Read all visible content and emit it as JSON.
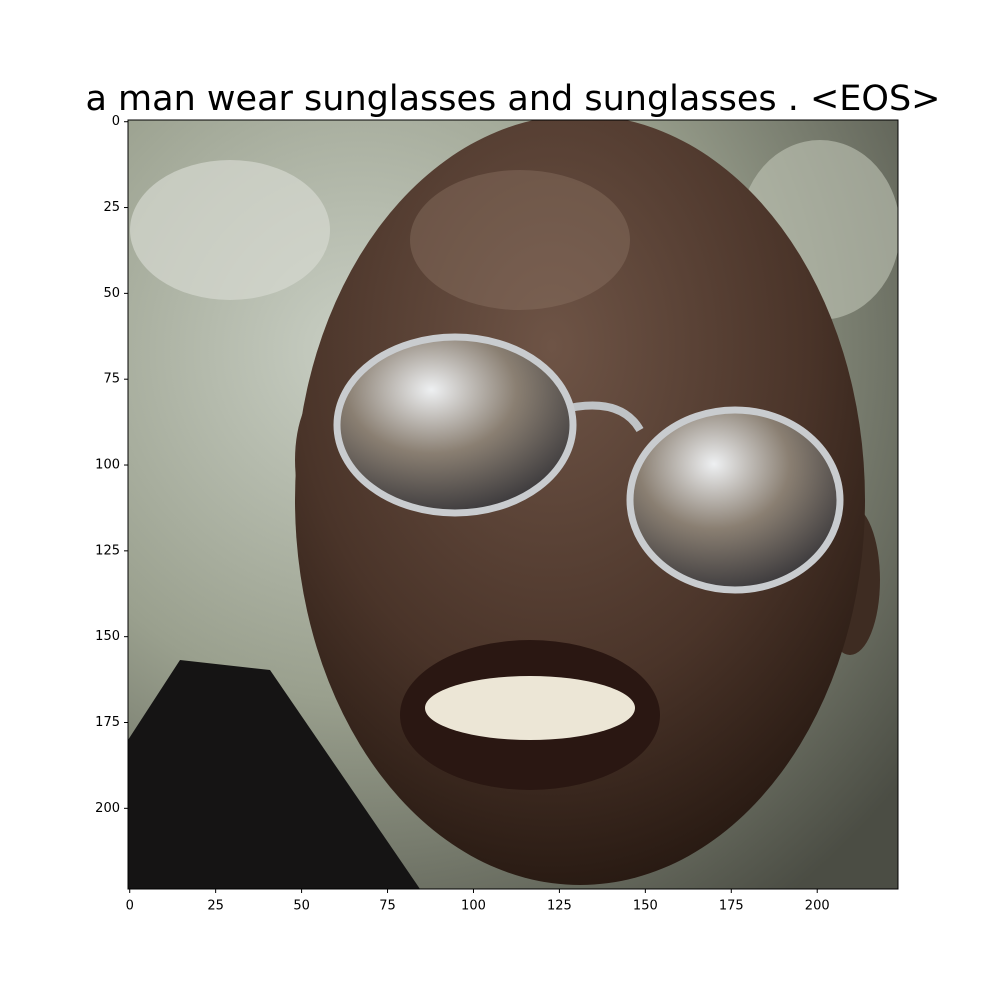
{
  "chart_data": {
    "type": "image",
    "title": "a man wear sunglasses and sunglasses . <EOS>",
    "xlim": [
      -0.5,
      223.5
    ],
    "ylim": [
      223.5,
      -0.5
    ],
    "xticks": [
      0,
      25,
      50,
      75,
      100,
      125,
      150,
      175,
      200
    ],
    "yticks": [
      0,
      25,
      50,
      75,
      100,
      125,
      150,
      175,
      200
    ]
  }
}
